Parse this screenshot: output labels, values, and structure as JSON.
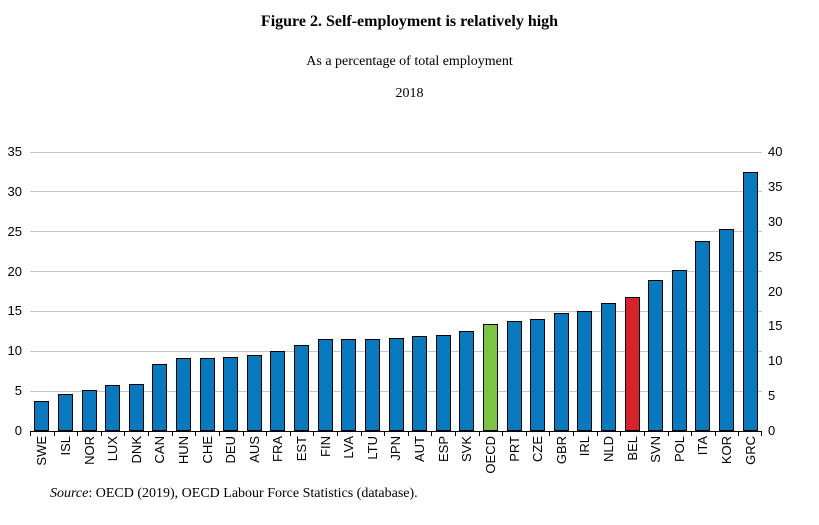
{
  "figure": {
    "title": "Figure 2. Self-employment is relatively high",
    "subtitle": "As a percentage of total employment",
    "year": "2018",
    "source": {
      "label": "Source",
      "text": ": OECD (2019), OECD Labour Force Statistics (database)."
    }
  },
  "chart_data": {
    "type": "bar",
    "title": "Figure 2. Self-employment is relatively high",
    "subtitle": "As a percentage of total employment",
    "year": "2018",
    "unit": "% of total employment",
    "categories": [
      "SWE",
      "ISL",
      "NOR",
      "LUX",
      "DNK",
      "CAN",
      "HUN",
      "CHE",
      "DEU",
      "AUS",
      "FRA",
      "EST",
      "FIN",
      "LVA",
      "LTU",
      "JPN",
      "AUT",
      "ESP",
      "SVK",
      "OECD",
      "PRT",
      "CZE",
      "GBR",
      "IRL",
      "NLD",
      "BEL",
      "SVN",
      "POL",
      "ITA",
      "KOR",
      "GRC"
    ],
    "values": [
      3.8,
      4.6,
      5.2,
      5.8,
      5.9,
      8.4,
      9.1,
      9.2,
      9.3,
      9.5,
      10.1,
      10.8,
      11.5,
      11.6,
      11.6,
      11.7,
      11.9,
      12.1,
      12.5,
      13.4,
      13.8,
      14.1,
      14.8,
      15.1,
      16.1,
      16.8,
      18.9,
      20.2,
      23.8,
      25.4,
      32.5
    ],
    "bar_color": "#0779BE",
    "highlight_colors": {
      "OECD": "#7DC443",
      "BEL": "#D7222B"
    },
    "bar_border_color": "#000000",
    "gridline_color": "#C6C6C6",
    "left_axis": {
      "min": 0,
      "max": 35,
      "step": 5,
      "ticks": [
        0,
        5,
        10,
        15,
        20,
        25,
        30,
        35
      ]
    },
    "right_axis": {
      "min": 0,
      "max": 40,
      "step": 5,
      "ticks": [
        0,
        5,
        10,
        15,
        20,
        25,
        30,
        35,
        40
      ]
    },
    "grid": "horizontal gridlines aligned to left axis",
    "legend": "none",
    "x_label_rotation": -90
  }
}
